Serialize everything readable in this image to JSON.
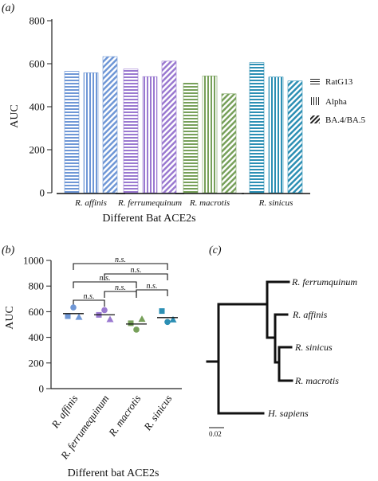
{
  "figure": {
    "panel_a": "(a)",
    "panel_b": "(b)",
    "panel_c": "(c)"
  },
  "chart_data": [
    {
      "panel": "(a)",
      "type": "bar",
      "xlabel": "Different Bat ACE2s",
      "ylabel": "AUC",
      "ylim": [
        0,
        800
      ],
      "yticks": [
        0,
        200,
        400,
        600,
        800
      ],
      "grid": false,
      "legend_position": "right",
      "categories": [
        "R. affinis",
        "R. ferrumequinum",
        "R. macrotis",
        "R. sinicus"
      ],
      "category_colors": [
        "#6f97d6",
        "#9a79d0",
        "#77a05a",
        "#2c8fb4"
      ],
      "series": [
        {
          "name": "RatG13",
          "pattern": "horizontal",
          "values": [
            565,
            575,
            510,
            605
          ]
        },
        {
          "name": "Alpha",
          "pattern": "vertical",
          "values": [
            558,
            540,
            543,
            538
          ]
        },
        {
          "name": "BA.4/BA.5",
          "pattern": "diagonal",
          "values": [
            633,
            612,
            460,
            520
          ]
        }
      ]
    },
    {
      "panel": "(b)",
      "type": "scatter",
      "xlabel": "Different bat ACE2s",
      "ylabel": "AUC",
      "ylim": [
        0,
        1000
      ],
      "yticks": [
        0,
        200,
        400,
        600,
        800,
        1000
      ],
      "categories": [
        "R. affinis",
        "R. ferrumequinum",
        "R. macrotis",
        "R. sinicus"
      ],
      "category_colors": [
        "#6f97d6",
        "#9a79d0",
        "#77a05a",
        "#2c8fb4"
      ],
      "points": [
        {
          "category": "R. affinis",
          "values": [
            565,
            558,
            633
          ],
          "mean": 585
        },
        {
          "category": "R. ferrumequinum",
          "values": [
            575,
            540,
            612
          ],
          "mean": 576
        },
        {
          "category": "R. macrotis",
          "values": [
            510,
            543,
            460
          ],
          "mean": 504
        },
        {
          "category": "R. sinicus",
          "values": [
            605,
            538,
            520
          ],
          "mean": 554
        }
      ],
      "comparisons": [
        {
          "from": "R. affinis",
          "to": "R. sinicus",
          "label": "n.s."
        },
        {
          "from": "R. ferrumequinum",
          "to": "R. sinicus",
          "label": "n.s."
        },
        {
          "from": "R. affinis",
          "to": "R. macrotis",
          "label": "n.s."
        },
        {
          "from": "R. ferrumequinum",
          "to": "R. macrotis",
          "label": "n.s."
        },
        {
          "from": "R. macrotis",
          "to": "R. sinicus",
          "label": "n.s."
        },
        {
          "from": "R. affinis",
          "to": "R. ferrumequinum",
          "label": "n.s."
        }
      ]
    }
  ],
  "tree": {
    "panel": "(c)",
    "leaves": [
      "R. ferrumquinum",
      "R. affinis",
      "R. sinicus",
      "R. macrotis",
      "H. sapiens"
    ],
    "scale_label": "0.02"
  }
}
